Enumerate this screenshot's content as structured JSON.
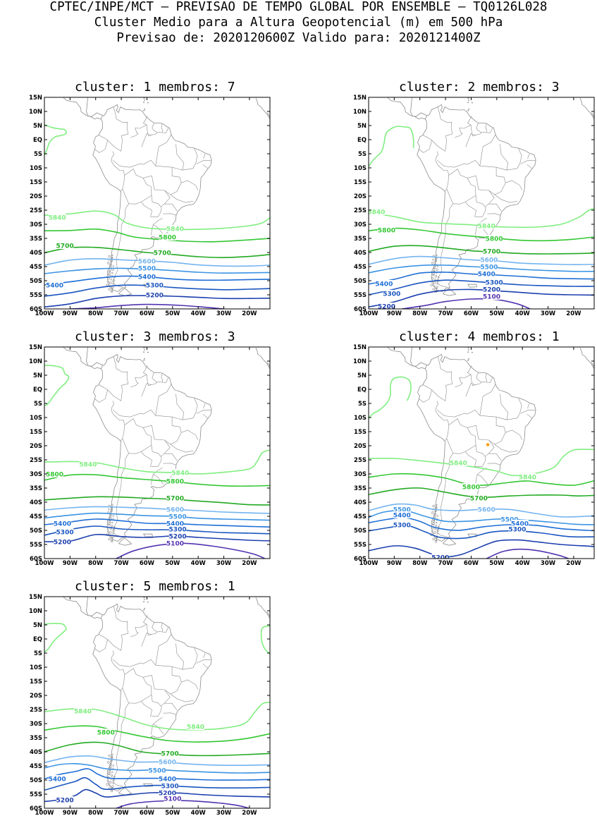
{
  "header": {
    "line1": "CPTEC/INPE/MCT — PREVISAO DE TEMPO GLOBAL POR ENSEMBLE — TQ0126L028",
    "line2": "Cluster Medio para a Altura Geopotencial (m) em 500 hPa",
    "line3": "Previsao de: 2020120600Z    Valido para: 2020121400Z"
  },
  "axes": {
    "lat_labels": [
      "15N",
      "10N",
      "5N",
      "EQ",
      "5S",
      "10S",
      "15S",
      "20S",
      "25S",
      "30S",
      "35S",
      "40S",
      "45S",
      "50S",
      "55S",
      "60S"
    ],
    "lon_labels": [
      "100W",
      "90W",
      "80W",
      "70W",
      "60W",
      "50W",
      "40W",
      "30W",
      "20W"
    ]
  },
  "colors": {
    "c5840": "#80ee80",
    "c5800": "#33c733",
    "c5700": "#22aa22",
    "c5600": "#74b4ef",
    "c5500": "#3c94e4",
    "c5400": "#1f6fd6",
    "c5300": "#1b56c0",
    "c5200": "#1c3fae",
    "c5100": "#5333b0",
    "map": "#8c8c8c",
    "marker": "#ff9900"
  },
  "panels": [
    {
      "title": "cluster: 1   membros: 7",
      "labels": [
        {
          "text": "5840",
          "lon": -95,
          "lat": -27.5,
          "level": "c5840"
        },
        {
          "text": "5840",
          "lon": -49,
          "lat": -31.5,
          "level": "c5840"
        },
        {
          "text": "5800",
          "lon": -52,
          "lat": -34.5,
          "level": "c5800"
        },
        {
          "text": "5700",
          "lon": -92,
          "lat": -37.5,
          "level": "c5700"
        },
        {
          "text": "5700",
          "lon": -54,
          "lat": -40,
          "level": "c5700"
        },
        {
          "text": "5600",
          "lon": -60,
          "lat": -43,
          "level": "c5600"
        },
        {
          "text": "5500",
          "lon": -60,
          "lat": -45.5,
          "level": "c5500"
        },
        {
          "text": "5400",
          "lon": -60,
          "lat": -48.5,
          "level": "c5400"
        },
        {
          "text": "5400",
          "lon": -96,
          "lat": -51.5,
          "level": "c5400"
        },
        {
          "text": "5300",
          "lon": -57,
          "lat": -51.5,
          "level": "c5300"
        },
        {
          "text": "5200",
          "lon": -57,
          "lat": -55,
          "level": "c5200"
        }
      ]
    },
    {
      "title": "cluster: 2   membros: 3",
      "labels": [
        {
          "text": "5840",
          "lon": -97,
          "lat": -25.5,
          "level": "c5840"
        },
        {
          "text": "5840",
          "lon": -54,
          "lat": -30.5,
          "level": "c5840"
        },
        {
          "text": "5800",
          "lon": -93,
          "lat": -32,
          "level": "c5800"
        },
        {
          "text": "5800",
          "lon": -51,
          "lat": -35,
          "level": "c5800"
        },
        {
          "text": "5700",
          "lon": -52,
          "lat": -39.5,
          "level": "c5700"
        },
        {
          "text": "5600",
          "lon": -53,
          "lat": -42.5,
          "level": "c5600"
        },
        {
          "text": "5500",
          "lon": -53,
          "lat": -45,
          "level": "c5500"
        },
        {
          "text": "5400",
          "lon": -54,
          "lat": -47.5,
          "level": "c5400"
        },
        {
          "text": "5400",
          "lon": -94,
          "lat": -51,
          "level": "c5400"
        },
        {
          "text": "5300",
          "lon": -51,
          "lat": -50.5,
          "level": "c5300"
        },
        {
          "text": "5300",
          "lon": -91,
          "lat": -54.5,
          "level": "c5300"
        },
        {
          "text": "5200",
          "lon": -52,
          "lat": -53,
          "level": "c5200"
        },
        {
          "text": "5200",
          "lon": -93,
          "lat": -59,
          "level": "c5200"
        },
        {
          "text": "5100",
          "lon": -52,
          "lat": -55.5,
          "level": "c5100"
        }
      ]
    },
    {
      "title": "cluster: 3   membros: 3",
      "labels": [
        {
          "text": "5840",
          "lon": -83,
          "lat": -26.5,
          "level": "c5840"
        },
        {
          "text": "5840",
          "lon": -47,
          "lat": -29.5,
          "level": "c5840"
        },
        {
          "text": "5800",
          "lon": -96,
          "lat": -30,
          "level": "c5800"
        },
        {
          "text": "5800",
          "lon": -49,
          "lat": -32.5,
          "level": "c5800"
        },
        {
          "text": "5700",
          "lon": -49,
          "lat": -38.5,
          "level": "c5700"
        },
        {
          "text": "5600",
          "lon": -49,
          "lat": -42.5,
          "level": "c5600"
        },
        {
          "text": "5500",
          "lon": -48,
          "lat": -45,
          "level": "c5500"
        },
        {
          "text": "5400",
          "lon": -49,
          "lat": -47.5,
          "level": "c5400"
        },
        {
          "text": "5400",
          "lon": -93,
          "lat": -47.5,
          "level": "c5400"
        },
        {
          "text": "5300",
          "lon": -48,
          "lat": -49.5,
          "level": "c5300"
        },
        {
          "text": "5300",
          "lon": -92,
          "lat": -50.5,
          "level": "c5300"
        },
        {
          "text": "5200",
          "lon": -48,
          "lat": -52,
          "level": "c5200"
        },
        {
          "text": "5200",
          "lon": -93,
          "lat": -54,
          "level": "c5200"
        },
        {
          "text": "5100",
          "lon": -49,
          "lat": -54.5,
          "level": "c5100"
        }
      ]
    },
    {
      "title": "cluster: 4   membros: 1",
      "labels": [
        {
          "text": "5840",
          "lon": -65,
          "lat": -26,
          "level": "c5840"
        },
        {
          "text": "5840",
          "lon": -38,
          "lat": -31,
          "level": "c5840"
        },
        {
          "text": "5800",
          "lon": -60,
          "lat": -34.5,
          "level": "c5800"
        },
        {
          "text": "5700",
          "lon": -57,
          "lat": -38.5,
          "level": "c5700"
        },
        {
          "text": "5600",
          "lon": -54,
          "lat": -42.5,
          "level": "c5600"
        },
        {
          "text": "5500",
          "lon": -87,
          "lat": -42.5,
          "level": "c5500"
        },
        {
          "text": "5500",
          "lon": -45,
          "lat": -46,
          "level": "c5500"
        },
        {
          "text": "5400",
          "lon": -87,
          "lat": -44.5,
          "level": "c5400"
        },
        {
          "text": "5400",
          "lon": -41,
          "lat": -47.5,
          "level": "c5400"
        },
        {
          "text": "5300",
          "lon": -87,
          "lat": -48,
          "level": "c5300"
        },
        {
          "text": "5300",
          "lon": -42,
          "lat": -49.5,
          "level": "c5300"
        },
        {
          "text": "5200",
          "lon": -72,
          "lat": -59.5,
          "level": "c5200"
        }
      ]
    },
    {
      "title": "cluster: 5   membros: 1",
      "labels": [
        {
          "text": "5840",
          "lon": -85,
          "lat": -25.5,
          "level": "c5840"
        },
        {
          "text": "5840",
          "lon": -41,
          "lat": -31,
          "level": "c5840"
        },
        {
          "text": "5800",
          "lon": -76,
          "lat": -33,
          "level": "c5800"
        },
        {
          "text": "5700",
          "lon": -51,
          "lat": -40.5,
          "level": "c5700"
        },
        {
          "text": "5600",
          "lon": -52,
          "lat": -43.5,
          "level": "c5600"
        },
        {
          "text": "5500",
          "lon": -56,
          "lat": -46.5,
          "level": "c5500"
        },
        {
          "text": "5400",
          "lon": -95,
          "lat": -49.5,
          "level": "c5400"
        },
        {
          "text": "5400",
          "lon": -52,
          "lat": -49.5,
          "level": "c5400"
        },
        {
          "text": "5300",
          "lon": -51,
          "lat": -52,
          "level": "c5300"
        },
        {
          "text": "5200",
          "lon": -92,
          "lat": -57,
          "level": "c5200"
        },
        {
          "text": "5200",
          "lon": -52,
          "lat": -54.5,
          "level": "c5200"
        },
        {
          "text": "5100",
          "lon": -50,
          "lat": -56.5,
          "level": "c5100"
        }
      ]
    }
  ]
}
